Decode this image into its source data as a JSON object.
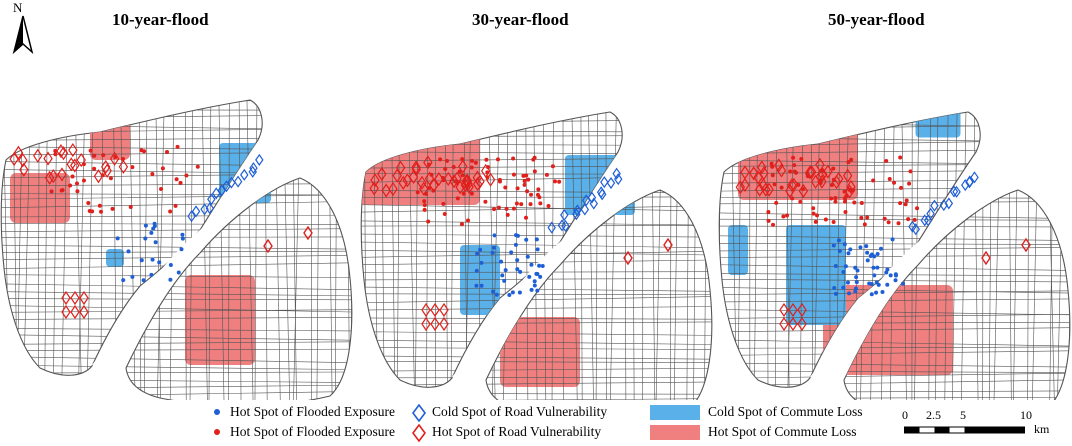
{
  "panels": [
    {
      "title": "10-year-flood"
    },
    {
      "title": "30-year-flood"
    },
    {
      "title": "50-year-flood"
    }
  ],
  "north_label": "N",
  "legend": {
    "hot_exposure_blue": "Hot Spot of Flooded Exposure",
    "hot_exposure_red": "Hot Spot of Flooded Exposure",
    "cold_road": "Cold Spot of Road Vulnerability",
    "hot_road": "Hot Spot of Road Vulnerability",
    "cold_commute": "Cold Spot of Commute Loss",
    "hot_commute": "Hot Spot of Commute Loss"
  },
  "scale": {
    "ticks": [
      "0",
      "2.5",
      "5",
      "10"
    ],
    "unit": "km"
  },
  "colors": {
    "blue_point": "#1f5fd6",
    "red_point": "#e0201c",
    "cold_fill": "#5ab0e8",
    "hot_fill": "#f08080",
    "road": "#555555"
  }
}
